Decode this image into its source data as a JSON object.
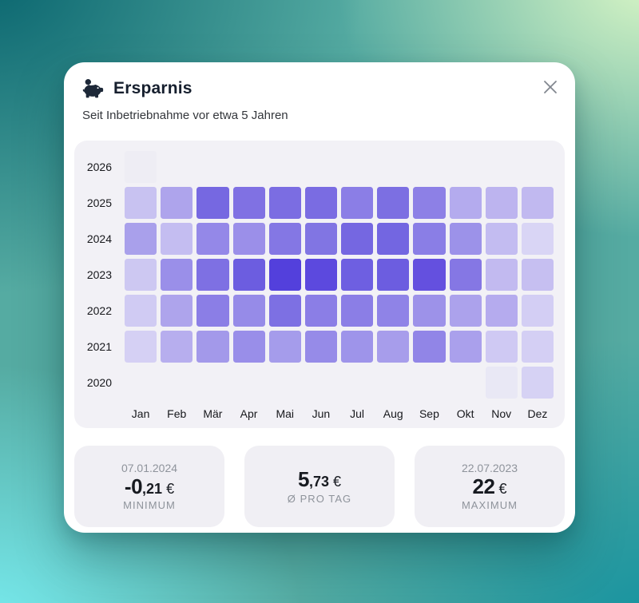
{
  "header": {
    "title": "Ersparnis",
    "subtitle": "Seit Inbetriebnahme vor etwa 5 Jahren"
  },
  "chart_data": {
    "type": "heatmap",
    "title": "Ersparnis",
    "x_labels": [
      "Jan",
      "Feb",
      "Mär",
      "Apr",
      "Mai",
      "Jun",
      "Jul",
      "Aug",
      "Sep",
      "Okt",
      "Nov",
      "Dez"
    ],
    "y_labels": [
      "2026",
      "2025",
      "2024",
      "2023",
      "2022",
      "2021",
      "2020"
    ],
    "legend_position": "none",
    "grid": "off",
    "color_scale": {
      "min_color": "#eeedf4",
      "max_color": "#5340dc",
      "note": "darker purple = higher savings; numeric values not labeled in chart"
    },
    "cells": [
      [
        "#eeedf4",
        null,
        null,
        null,
        null,
        null,
        null,
        null,
        null,
        null,
        null,
        null
      ],
      [
        "#c8c2f1",
        "#aea4ec",
        "#7668e1",
        "#8071e3",
        "#7b6de2",
        "#7a6ce2",
        "#8b7ee6",
        "#7c6fe2",
        "#8d80e6",
        "#b4abee",
        "#bdb4ef",
        "#c1b9f0"
      ],
      [
        "#a9a0eb",
        "#c4bdf1",
        "#9488e8",
        "#9b8fe9",
        "#8477e4",
        "#8175e3",
        "#7567e1",
        "#7366e1",
        "#8a7ee6",
        "#9c92e9",
        "#c3bcf1",
        "#d9d5f5"
      ],
      [
        "#cdc8f2",
        "#9a8fe9",
        "#7e70e3",
        "#6c5de0",
        "#5340dc",
        "#5c49de",
        "#6e5fe1",
        "#6c5de0",
        "#6450df",
        "#8577e4",
        "#c2baf0",
        "#c6bff1"
      ],
      [
        "#d0cbf3",
        "#aea4ec",
        "#8b7ee6",
        "#968be8",
        "#7d70e3",
        "#8b7ee6",
        "#8b7ee6",
        "#8f83e7",
        "#9d92e9",
        "#aca2ec",
        "#b5abee",
        "#d3cef4"
      ],
      [
        "#d5d0f4",
        "#b7aeee",
        "#a399ea",
        "#998ee9",
        "#a59ceb",
        "#968be8",
        "#9e94ea",
        "#a79deb",
        "#9185e7",
        "#aaa0ec",
        "#cfc9f3",
        "#d4cff4"
      ],
      [
        null,
        null,
        null,
        null,
        null,
        null,
        null,
        null,
        null,
        null,
        "#e9e8f5",
        "#d6d2f4"
      ]
    ],
    "relative_intensity": [
      [
        0.02,
        null,
        null,
        null,
        null,
        null,
        null,
        null,
        null,
        null,
        null,
        null
      ],
      [
        0.28,
        0.42,
        0.86,
        0.8,
        0.82,
        0.83,
        0.68,
        0.81,
        0.66,
        0.4,
        0.35,
        0.33
      ],
      [
        0.48,
        0.3,
        0.58,
        0.53,
        0.71,
        0.73,
        0.84,
        0.85,
        0.68,
        0.57,
        0.3,
        0.16
      ],
      [
        0.24,
        0.55,
        0.79,
        0.89,
        1.0,
        0.96,
        0.87,
        0.89,
        0.93,
        0.76,
        0.32,
        0.29
      ],
      [
        0.21,
        0.45,
        0.66,
        0.56,
        0.77,
        0.66,
        0.66,
        0.61,
        0.52,
        0.46,
        0.41,
        0.19
      ],
      [
        0.18,
        0.4,
        0.5,
        0.55,
        0.48,
        0.56,
        0.49,
        0.45,
        0.59,
        0.47,
        0.24,
        0.19
      ],
      [
        null,
        null,
        null,
        null,
        null,
        null,
        null,
        null,
        null,
        null,
        0.06,
        0.17
      ]
    ]
  },
  "stats": [
    {
      "date": "07.01.2024",
      "value_main": "-0",
      "value_fraction": ",21",
      "currency": "€",
      "label": "MINIMUM"
    },
    {
      "date": "",
      "value_main": "5",
      "value_fraction": ",73",
      "currency": "€",
      "label": "Ø PRO TAG"
    },
    {
      "date": "22.07.2023",
      "value_main": "22",
      "value_fraction": "",
      "currency": "€",
      "label": "MAXIMUM"
    }
  ]
}
